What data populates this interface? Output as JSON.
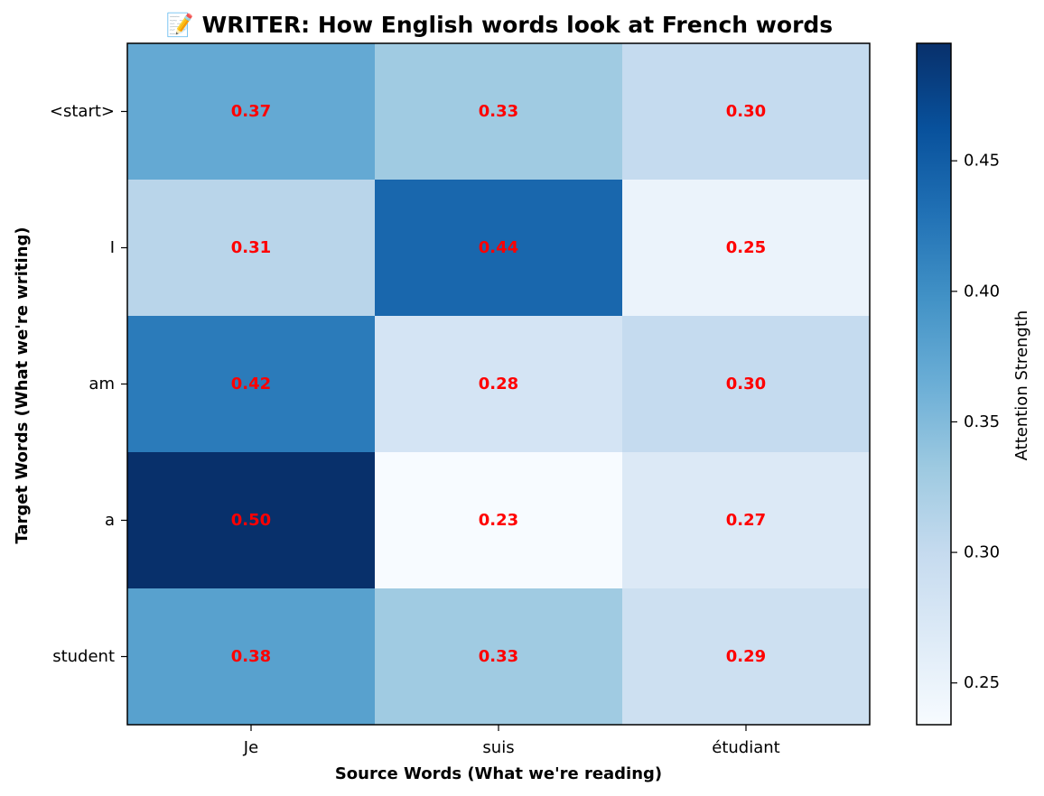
{
  "chart_data": {
    "type": "heatmap",
    "title": "📝 WRITER: How English words look at French words",
    "title_icon": "memo-icon",
    "xlabel": "Source Words (What we're reading)",
    "ylabel": "Target Words (What we're writing)",
    "x_categories": [
      "Je",
      "suis",
      "étudiant"
    ],
    "y_categories": [
      "<start>",
      "I",
      "am",
      "a",
      "student"
    ],
    "values": [
      [
        0.37,
        0.33,
        0.3
      ],
      [
        0.31,
        0.44,
        0.25
      ],
      [
        0.42,
        0.28,
        0.3
      ],
      [
        0.5,
        0.23,
        0.27
      ],
      [
        0.38,
        0.33,
        0.29
      ]
    ],
    "value_labels": [
      [
        "0.37",
        "0.33",
        "0.30"
      ],
      [
        "0.31",
        "0.44",
        "0.25"
      ],
      [
        "0.42",
        "0.28",
        "0.30"
      ],
      [
        "0.50",
        "0.23",
        "0.27"
      ],
      [
        "0.38",
        "0.33",
        "0.29"
      ]
    ],
    "colorscale": "Blues",
    "annotation_color": "#ff0000",
    "colorbar": {
      "label": "Attention Strength",
      "range": [
        0.234,
        0.495
      ],
      "ticks": [
        0.25,
        0.3,
        0.35,
        0.4,
        0.45
      ],
      "tick_labels": [
        "0.25",
        "0.30",
        "0.35",
        "0.40",
        "0.45"
      ]
    },
    "grid": false
  }
}
